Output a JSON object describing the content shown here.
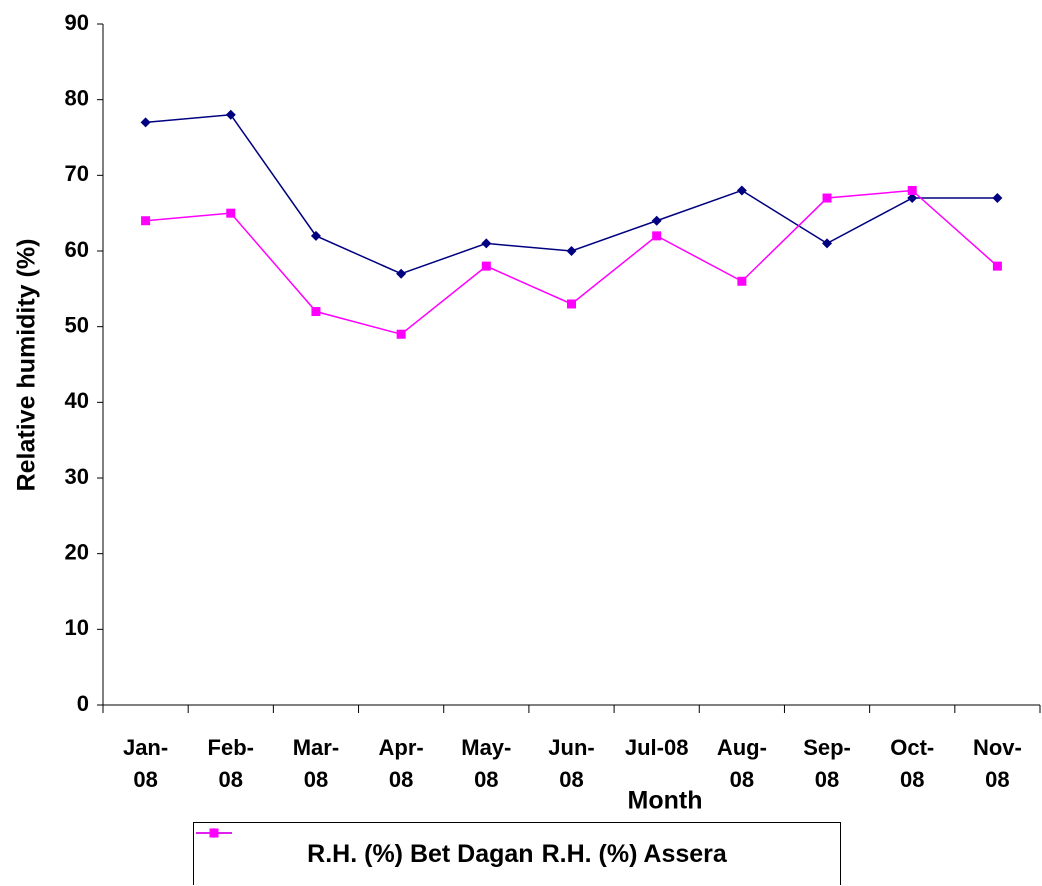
{
  "chart_data": {
    "type": "line",
    "x_label": "Month",
    "y_label": "Relative humidity (%)",
    "categories": [
      "Jan-08",
      "Feb-08",
      "Mar-08",
      "Apr-08",
      "May-08",
      "Jun-08",
      "Jul-08",
      "Aug-08",
      "Sep-08",
      "Oct-08",
      "Nov-08"
    ],
    "series": [
      {
        "name": "R.H. (%) Bet Dagan",
        "color": "#000080",
        "marker": "diamond",
        "values": [
          77,
          78,
          62,
          57,
          61,
          60,
          64,
          68,
          61,
          67,
          67
        ]
      },
      {
        "name": "R.H. (%) Assera",
        "color": "#ff00ff",
        "marker": "square",
        "values": [
          64,
          65,
          52,
          49,
          58,
          53,
          62,
          56,
          67,
          68,
          58
        ]
      }
    ],
    "ylim": [
      0,
      90
    ],
    "yticks": [
      0,
      10,
      20,
      30,
      40,
      50,
      60,
      70,
      80,
      90
    ],
    "grid": false,
    "legend": "bottom"
  }
}
